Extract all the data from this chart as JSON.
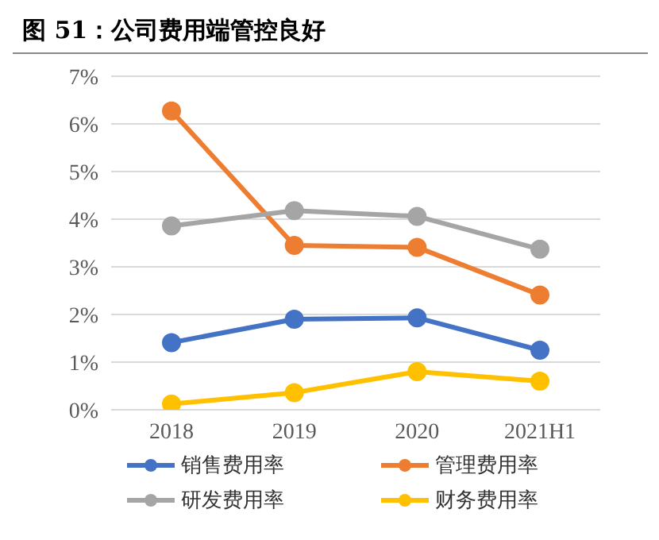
{
  "chart_data": {
    "type": "line",
    "title": "图 51：公司费用端管控良好",
    "categories": [
      "2018",
      "2019",
      "2020",
      "2021H1"
    ],
    "series": [
      {
        "name": "销售费用率",
        "color": "#4472c4",
        "values": [
          1.41,
          1.9,
          1.93,
          1.25
        ]
      },
      {
        "name": "管理费用率",
        "color": "#ed7d31",
        "values": [
          6.27,
          3.45,
          3.41,
          2.41
        ]
      },
      {
        "name": "研发费用率",
        "color": "#a5a5a5",
        "values": [
          3.86,
          4.18,
          4.06,
          3.37
        ]
      },
      {
        "name": "财务费用率",
        "color": "#ffc000",
        "values": [
          0.12,
          0.36,
          0.8,
          0.6
        ]
      }
    ],
    "ylim": [
      0,
      7
    ],
    "yticks": [
      {
        "value": 0,
        "label": "0%"
      },
      {
        "value": 1,
        "label": "1%"
      },
      {
        "value": 2,
        "label": "2%"
      },
      {
        "value": 3,
        "label": "3%"
      },
      {
        "value": 4,
        "label": "4%"
      },
      {
        "value": 5,
        "label": "5%"
      },
      {
        "value": 6,
        "label": "6%"
      },
      {
        "value": 7,
        "label": "7%"
      }
    ],
    "grid": "y",
    "legend": "bottom",
    "marker": "circle",
    "line_style": "solid"
  }
}
